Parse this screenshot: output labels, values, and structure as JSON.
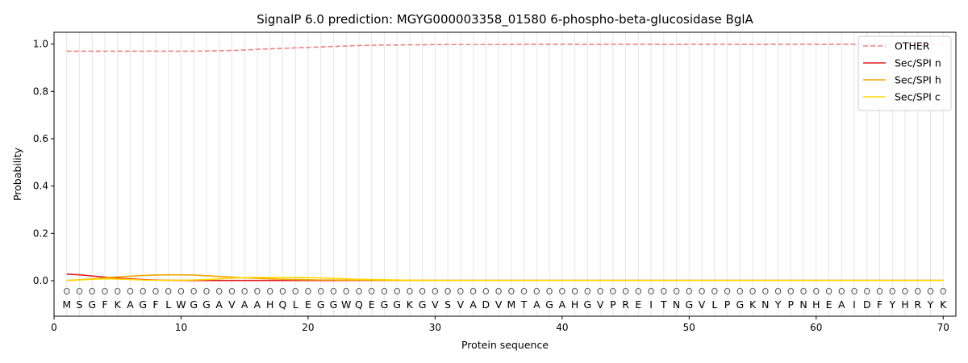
{
  "chart_data": {
    "type": "line",
    "title": "SignalP 6.0 prediction: MGYG000003358_01580 6-phospho-beta-glucosidase BglA",
    "xlabel": "Protein sequence",
    "ylabel": "Probability",
    "xlim": [
      0,
      71
    ],
    "ylim": [
      -0.15,
      1.05
    ],
    "xticks": [
      0,
      10,
      20,
      30,
      40,
      50,
      60,
      70
    ],
    "yticks": [
      0.0,
      0.2,
      0.4,
      0.6,
      0.8,
      1.0
    ],
    "xtick_labels": [
      "0",
      "10",
      "20",
      "30",
      "40",
      "50",
      "60",
      "70"
    ],
    "ytick_labels": [
      "0.0",
      "0.2",
      "0.4",
      "0.6",
      "0.8",
      "1.0"
    ],
    "legend_position": "top-right",
    "sequence": [
      "M",
      "S",
      "G",
      "F",
      "K",
      "A",
      "G",
      "F",
      "L",
      "W",
      "G",
      "G",
      "A",
      "V",
      "A",
      "A",
      "H",
      "Q",
      "L",
      "E",
      "G",
      "G",
      "W",
      "Q",
      "E",
      "G",
      "G",
      "K",
      "G",
      "V",
      "S",
      "V",
      "A",
      "D",
      "V",
      "M",
      "T",
      "A",
      "G",
      "A",
      "H",
      "G",
      "V",
      "P",
      "R",
      "E",
      "I",
      "T",
      "N",
      "G",
      "V",
      "L",
      "P",
      "G",
      "K",
      "N",
      "Y",
      "P",
      "N",
      "H",
      "E",
      "A",
      "I",
      "D",
      "F",
      "Y",
      "H",
      "R",
      "Y",
      "K"
    ],
    "region_labels": [
      "O",
      "O",
      "O",
      "O",
      "O",
      "O",
      "O",
      "O",
      "O",
      "O",
      "O",
      "O",
      "O",
      "O",
      "O",
      "O",
      "O",
      "O",
      "O",
      "O",
      "O",
      "O",
      "O",
      "O",
      "O",
      "O",
      "O",
      "O",
      "O",
      "O",
      "O",
      "O",
      "O",
      "O",
      "O",
      "O",
      "O",
      "O",
      "O",
      "O",
      "O",
      "O",
      "O",
      "O",
      "O",
      "O",
      "O",
      "O",
      "O",
      "O",
      "O",
      "O",
      "O",
      "O",
      "O",
      "O",
      "O",
      "O",
      "O",
      "O",
      "O",
      "O",
      "O",
      "O",
      "O",
      "O",
      "O",
      "O",
      "O",
      "O"
    ],
    "series": [
      {
        "name": "OTHER",
        "color": "#f08080",
        "dash": true,
        "values": [
          0.97,
          0.97,
          0.97,
          0.97,
          0.97,
          0.97,
          0.97,
          0.97,
          0.97,
          0.97,
          0.97,
          0.971,
          0.972,
          0.973,
          0.975,
          0.978,
          0.98,
          0.982,
          0.984,
          0.986,
          0.988,
          0.99,
          0.992,
          0.994,
          0.995,
          0.996,
          0.996,
          0.997,
          0.997,
          0.998,
          0.998,
          0.998,
          0.998,
          0.998,
          0.998,
          0.999,
          0.999,
          0.999,
          0.999,
          0.999,
          0.999,
          0.999,
          0.999,
          0.999,
          0.999,
          0.999,
          0.999,
          0.999,
          0.999,
          0.999,
          0.999,
          0.999,
          0.999,
          0.999,
          0.999,
          0.999,
          0.999,
          0.999,
          0.999,
          0.999,
          0.999,
          0.999,
          0.999,
          0.999,
          0.999,
          0.999,
          0.999,
          0.999,
          0.999,
          0.999
        ]
      },
      {
        "name": "Sec/SPI n",
        "color": "#e31a1c",
        "dash": false,
        "values": [
          0.028,
          0.025,
          0.02,
          0.015,
          0.011,
          0.008,
          0.005,
          0.003,
          0.002,
          0.001,
          0.001,
          0.001,
          0.001,
          0.001,
          0.001,
          0.001,
          0.001,
          0.001,
          0.001,
          0.001,
          0.001,
          0.001,
          0.001,
          0.001,
          0.001,
          0.001,
          0.001,
          0.001,
          0.001,
          0.001,
          0.001,
          0.001,
          0.001,
          0.001,
          0.001,
          0.001,
          0.001,
          0.001,
          0.001,
          0.001,
          0.001,
          0.001,
          0.001,
          0.001,
          0.001,
          0.001,
          0.001,
          0.001,
          0.001,
          0.001,
          0.001,
          0.001,
          0.001,
          0.001,
          0.001,
          0.001,
          0.001,
          0.001,
          0.001,
          0.001,
          0.001,
          0.001,
          0.001,
          0.001,
          0.001,
          0.001,
          0.001,
          0.001,
          0.001,
          0.001
        ]
      },
      {
        "name": "Sec/SPI h",
        "color": "#f0a500",
        "dash": false,
        "values": [
          0.001,
          0.004,
          0.008,
          0.012,
          0.016,
          0.019,
          0.022,
          0.024,
          0.025,
          0.025,
          0.024,
          0.021,
          0.018,
          0.015,
          0.012,
          0.01,
          0.008,
          0.006,
          0.005,
          0.004,
          0.003,
          0.003,
          0.002,
          0.002,
          0.002,
          0.001,
          0.001,
          0.001,
          0.001,
          0.001,
          0.001,
          0.001,
          0.001,
          0.001,
          0.001,
          0.001,
          0.001,
          0.001,
          0.001,
          0.001,
          0.001,
          0.001,
          0.001,
          0.001,
          0.001,
          0.001,
          0.001,
          0.001,
          0.001,
          0.001,
          0.001,
          0.001,
          0.001,
          0.001,
          0.001,
          0.001,
          0.001,
          0.001,
          0.001,
          0.001,
          0.001,
          0.001,
          0.001,
          0.001,
          0.001,
          0.001,
          0.001,
          0.001,
          0.001,
          0.001
        ]
      },
      {
        "name": "Sec/SPI c",
        "color": "#ffd700",
        "dash": false,
        "values": [
          0.001,
          0.003,
          0.006,
          0.008,
          0.007,
          0.005,
          0.003,
          0.002,
          0.002,
          0.002,
          0.003,
          0.005,
          0.008,
          0.011,
          0.013,
          0.014,
          0.014,
          0.014,
          0.014,
          0.013,
          0.012,
          0.01,
          0.008,
          0.006,
          0.005,
          0.004,
          0.003,
          0.002,
          0.002,
          0.001,
          0.001,
          0.001,
          0.001,
          0.001,
          0.001,
          0.001,
          0.001,
          0.001,
          0.001,
          0.001,
          0.001,
          0.001,
          0.001,
          0.001,
          0.001,
          0.001,
          0.001,
          0.001,
          0.001,
          0.001,
          0.001,
          0.001,
          0.001,
          0.001,
          0.001,
          0.001,
          0.001,
          0.001,
          0.001,
          0.001,
          0.001,
          0.001,
          0.001,
          0.001,
          0.001,
          0.001,
          0.001,
          0.001,
          0.001,
          0.001
        ]
      }
    ]
  }
}
